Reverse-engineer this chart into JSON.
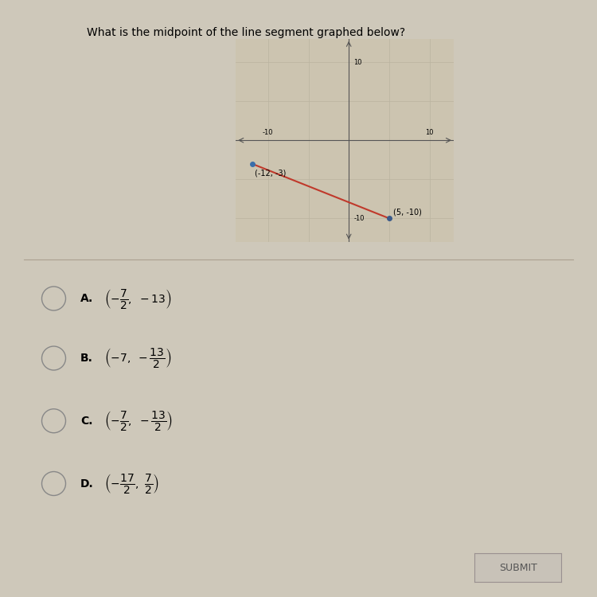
{
  "question": "What is the midpoint of the line segment graphed below?",
  "point1": [
    -12,
    -3
  ],
  "point2": [
    5,
    -10
  ],
  "point1_label": "(-12, -3)",
  "point2_label": "(5, -10)",
  "point1_color": "#3a6eaa",
  "point2_color": "#3a5a8a",
  "line_color": "#c0392b",
  "graph_xlim": [
    -14,
    13
  ],
  "graph_ylim": [
    -13,
    13
  ],
  "bg_color": "#ccc4b0",
  "page_bg": "#cec8ba",
  "grid_color": "#bab3a0",
  "axis_color": "#555555",
  "choices": [
    {
      "label": "A.",
      "math": "$\\left(-\\dfrac{7}{2},\\ -13\\right)$"
    },
    {
      "label": "B.",
      "math": "$\\left(-7,\\ -\\dfrac{13}{2}\\right)$"
    },
    {
      "label": "C.",
      "math": "$\\left(-\\dfrac{7}{2},\\ -\\dfrac{13}{2}\\right)$"
    },
    {
      "label": "D.",
      "math": "$\\left(-\\dfrac{17}{2},\\ \\dfrac{7}{2}\\right)$"
    }
  ],
  "submit_label": "SUBMIT",
  "tick_label_fontsize": 6,
  "choice_fontsize": 10,
  "label_fontsize": 7
}
